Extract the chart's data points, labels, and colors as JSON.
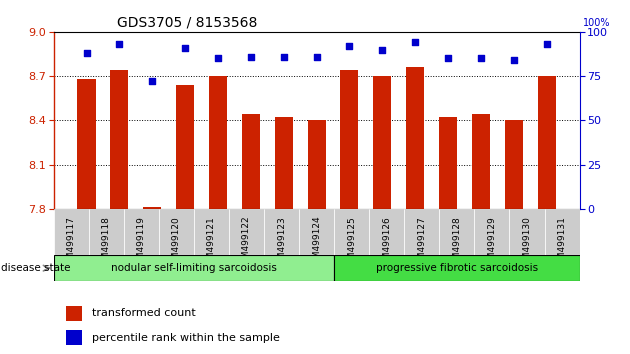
{
  "title": "GDS3705 / 8153568",
  "samples": [
    "GSM499117",
    "GSM499118",
    "GSM499119",
    "GSM499120",
    "GSM499121",
    "GSM499122",
    "GSM499123",
    "GSM499124",
    "GSM499125",
    "GSM499126",
    "GSM499127",
    "GSM499128",
    "GSM499129",
    "GSM499130",
    "GSM499131"
  ],
  "bar_values": [
    8.68,
    8.74,
    7.81,
    8.64,
    8.7,
    8.44,
    8.42,
    8.4,
    8.74,
    8.7,
    8.76,
    8.42,
    8.44,
    8.4,
    8.7
  ],
  "percentile_values": [
    88,
    93,
    72,
    91,
    85,
    86,
    86,
    86,
    92,
    90,
    94,
    85,
    85,
    84,
    93
  ],
  "bar_color": "#cc2200",
  "dot_color": "#0000cc",
  "ylim_left": [
    7.8,
    9.0
  ],
  "ylim_right": [
    0,
    100
  ],
  "yticks_left": [
    7.8,
    8.1,
    8.4,
    8.7,
    9.0
  ],
  "yticks_right": [
    0,
    25,
    50,
    75,
    100
  ],
  "grid_lines": [
    8.1,
    8.4,
    8.7
  ],
  "group1_label": "nodular self-limiting sarcoidosis",
  "group1_count": 8,
  "group2_label": "progressive fibrotic sarcoidosis",
  "group2_count": 7,
  "group1_color": "#90ee90",
  "group2_color": "#44dd44",
  "disease_state_label": "disease state",
  "legend_bar_label": "transformed count",
  "legend_dot_label": "percentile rank within the sample",
  "bg_color": "#ffffff",
  "tick_label_color_left": "#cc2200",
  "tick_label_color_right": "#0000cc",
  "bar_width": 0.55,
  "tick_bg_color": "#cccccc",
  "right_axis_label_100pct": "100%"
}
